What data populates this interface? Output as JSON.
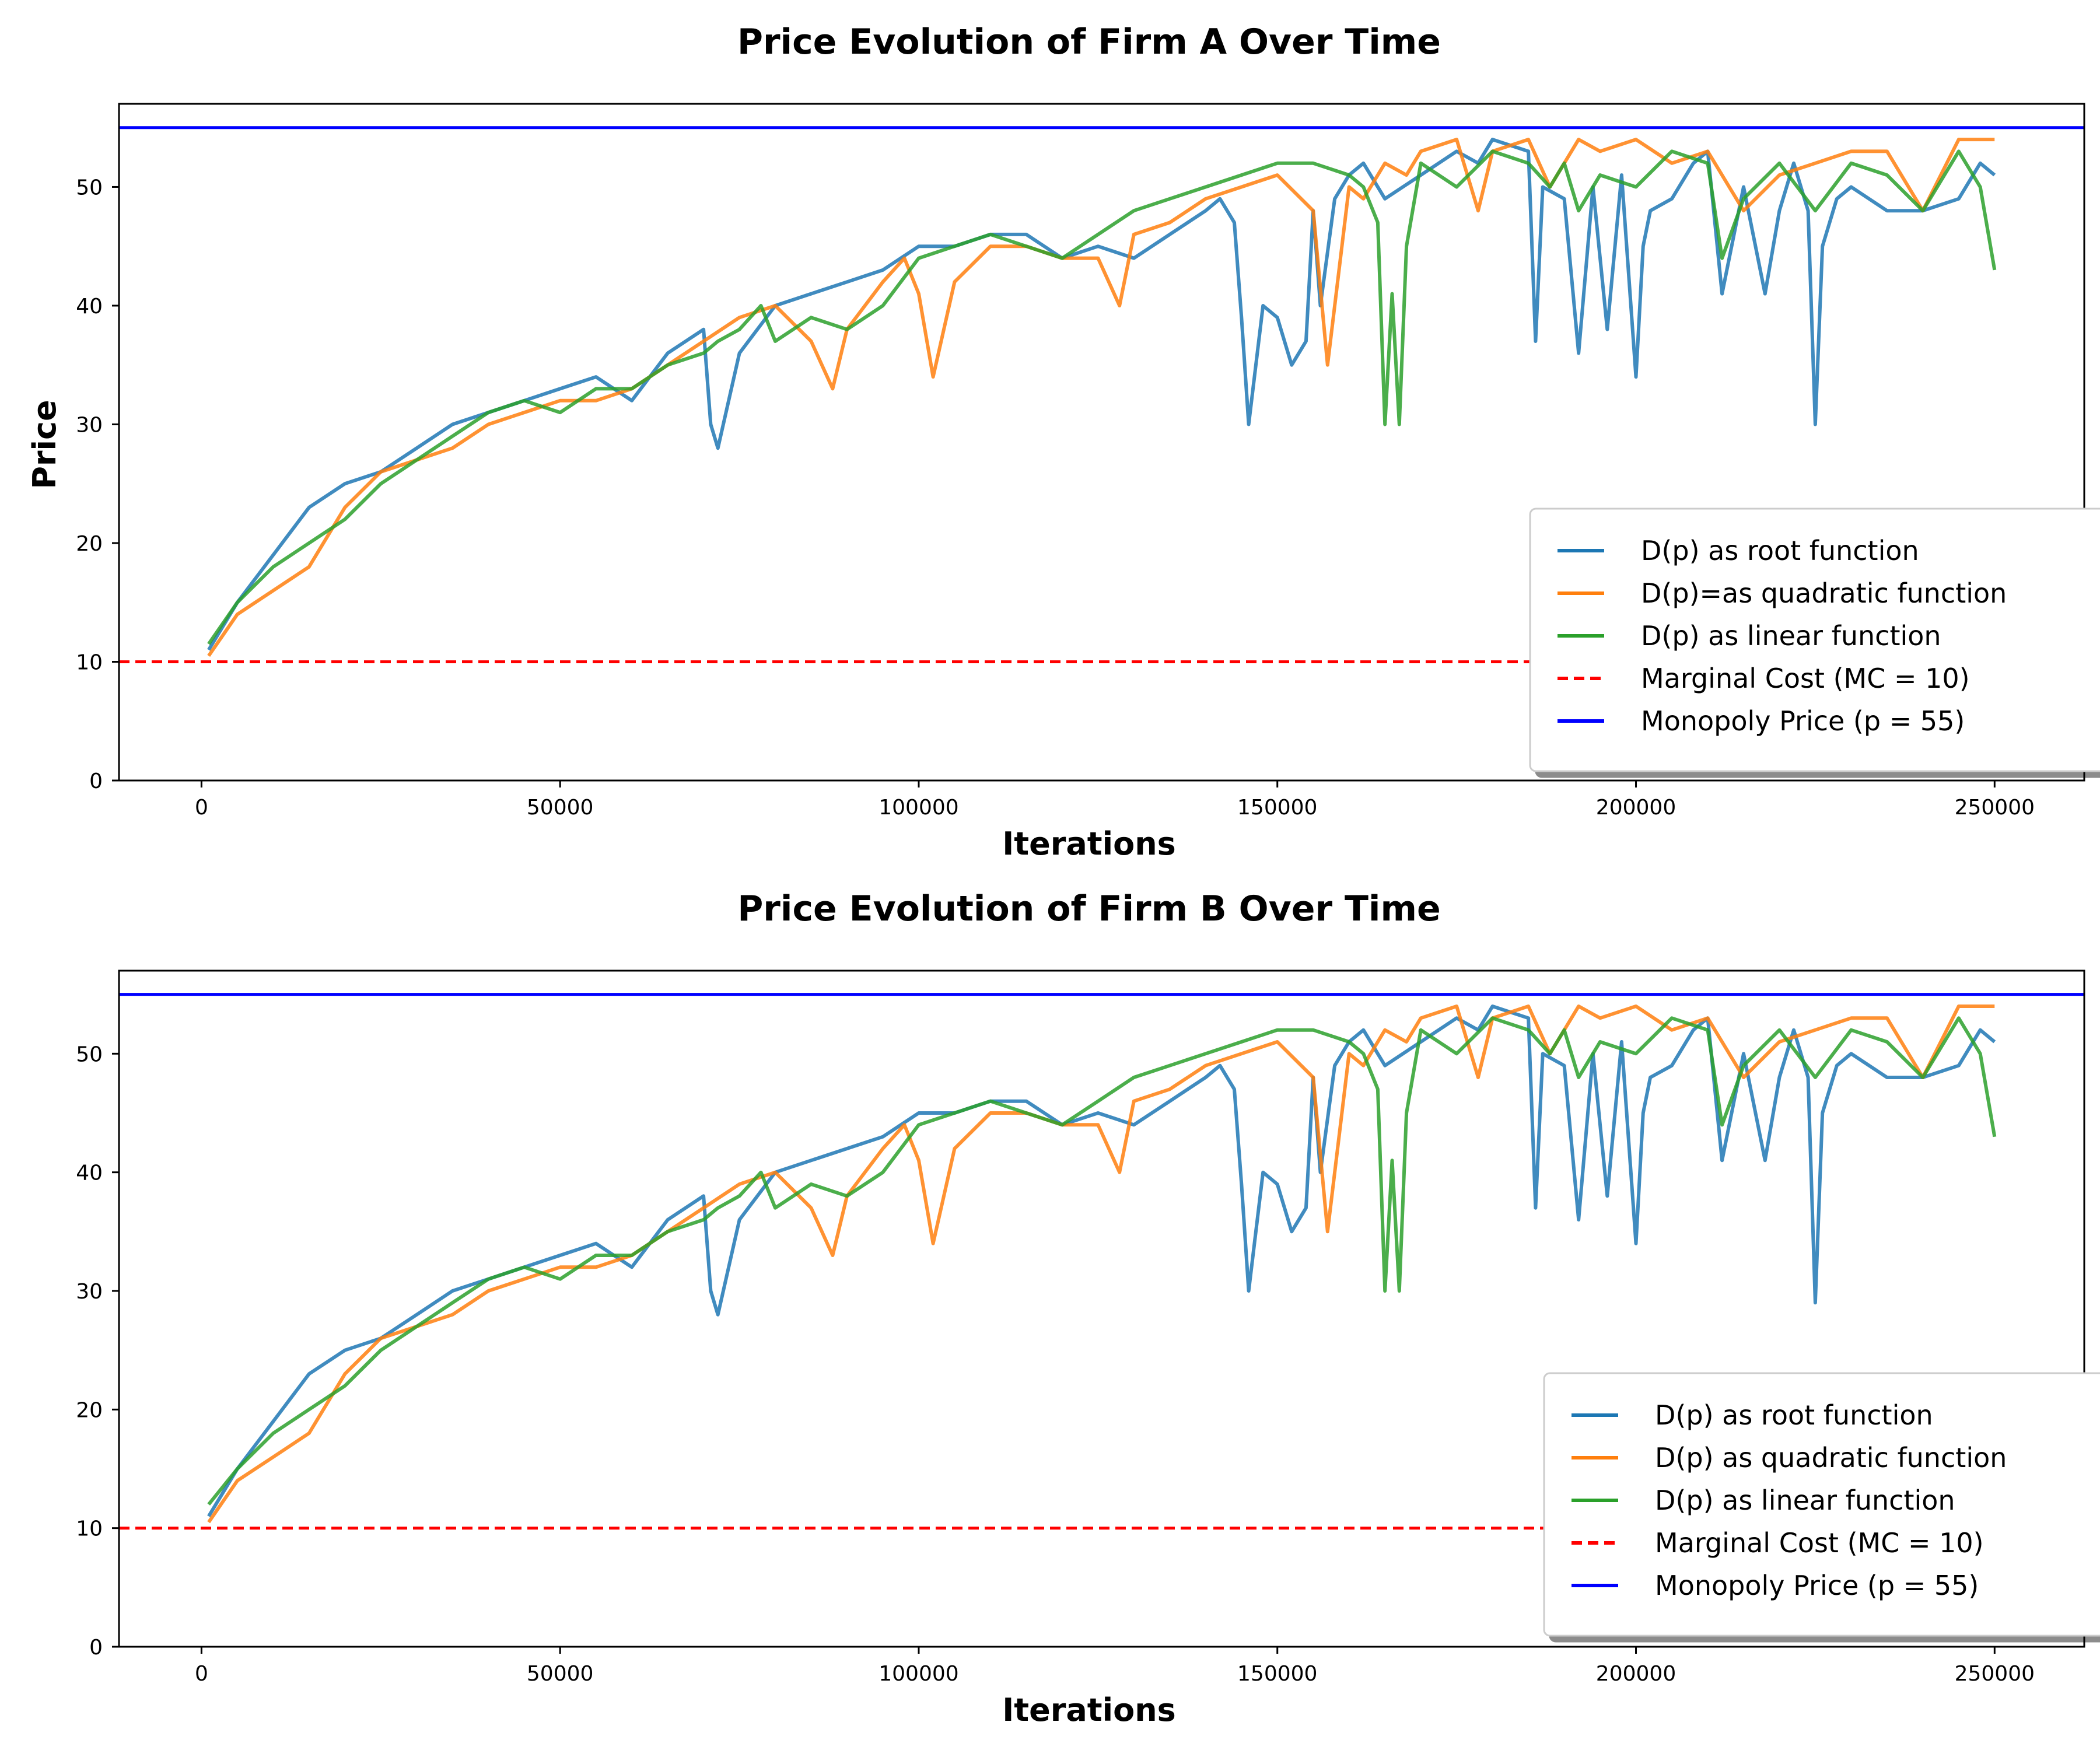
{
  "chart_data": [
    {
      "type": "line",
      "title": "Price Evolution of Firm A Over Time",
      "xlabel": "Iterations",
      "ylabel": "Price",
      "xlim": [
        -11500,
        262500
      ],
      "ylim": [
        0,
        57
      ],
      "xticks": [
        0,
        50000,
        100000,
        150000,
        200000,
        250000
      ],
      "yticks": [
        0,
        10,
        20,
        30,
        40,
        50
      ],
      "grid": false,
      "legend_position": "lower-right",
      "series": [
        {
          "name": "D(p) as root function",
          "color": "#1f77b4",
          "x": [
            1000,
            5000,
            10000,
            15000,
            20000,
            25000,
            30000,
            35000,
            40000,
            45000,
            50000,
            55000,
            60000,
            65000,
            70000,
            71000,
            72000,
            75000,
            80000,
            85000,
            90000,
            95000,
            100000,
            105000,
            110000,
            115000,
            120000,
            125000,
            130000,
            135000,
            140000,
            142000,
            144000,
            145000,
            146000,
            148000,
            150000,
            152000,
            154000,
            155000,
            156000,
            158000,
            160000,
            162000,
            165000,
            170000,
            175000,
            178000,
            180000,
            185000,
            186000,
            187000,
            190000,
            192000,
            194000,
            196000,
            198000,
            200000,
            201000,
            202000,
            205000,
            208000,
            210000,
            212000,
            215000,
            218000,
            220000,
            222000,
            224000,
            225000,
            226000,
            228000,
            230000,
            235000,
            240000,
            245000,
            248000,
            250000
          ],
          "values": [
            11,
            15,
            19,
            23,
            25,
            26,
            28,
            30,
            31,
            32,
            33,
            34,
            32,
            36,
            38,
            30,
            28,
            36,
            40,
            41,
            42,
            43,
            45,
            45,
            46,
            46,
            44,
            45,
            44,
            46,
            48,
            49,
            47,
            39,
            30,
            40,
            39,
            35,
            37,
            48,
            40,
            49,
            51,
            52,
            49,
            51,
            53,
            52,
            54,
            53,
            37,
            50,
            49,
            36,
            50,
            38,
            51,
            34,
            45,
            48,
            49,
            52,
            53,
            41,
            50,
            41,
            48,
            52,
            48,
            30,
            45,
            49,
            50,
            48,
            48,
            49,
            52,
            51
          ]
        },
        {
          "name": "D(p)=as quadratic function",
          "color": "#ff7f0e",
          "x": [
            1000,
            5000,
            10000,
            15000,
            20000,
            25000,
            30000,
            35000,
            40000,
            45000,
            50000,
            55000,
            60000,
            65000,
            70000,
            75000,
            80000,
            85000,
            88000,
            90000,
            95000,
            98000,
            100000,
            102000,
            105000,
            110000,
            115000,
            120000,
            125000,
            128000,
            130000,
            135000,
            140000,
            145000,
            150000,
            155000,
            157000,
            160000,
            162000,
            165000,
            168000,
            170000,
            175000,
            178000,
            180000,
            185000,
            188000,
            190000,
            192000,
            195000,
            200000,
            205000,
            210000,
            215000,
            220000,
            225000,
            230000,
            235000,
            240000,
            245000,
            250000
          ],
          "values": [
            10.5,
            14,
            16,
            18,
            23,
            26,
            27,
            28,
            30,
            31,
            32,
            32,
            33,
            35,
            37,
            39,
            40,
            37,
            33,
            38,
            42,
            44,
            41,
            34,
            42,
            45,
            45,
            44,
            44,
            40,
            46,
            47,
            49,
            50,
            51,
            48,
            35,
            50,
            49,
            52,
            51,
            53,
            54,
            48,
            53,
            54,
            50,
            52,
            54,
            53,
            54,
            52,
            53,
            48,
            51,
            52,
            53,
            53,
            48,
            54,
            54
          ]
        },
        {
          "name": "D(p) as linear function",
          "color": "#2ca02c",
          "x": [
            1000,
            5000,
            10000,
            15000,
            20000,
            25000,
            30000,
            35000,
            40000,
            45000,
            50000,
            55000,
            60000,
            65000,
            70000,
            72000,
            75000,
            78000,
            80000,
            85000,
            90000,
            95000,
            100000,
            105000,
            110000,
            115000,
            120000,
            125000,
            130000,
            135000,
            140000,
            145000,
            150000,
            155000,
            160000,
            162000,
            164000,
            165000,
            166000,
            167000,
            168000,
            170000,
            175000,
            180000,
            185000,
            188000,
            190000,
            192000,
            195000,
            200000,
            205000,
            210000,
            212000,
            215000,
            220000,
            225000,
            230000,
            235000,
            240000,
            245000,
            248000,
            250000
          ],
          "values": [
            11.5,
            15,
            18,
            20,
            22,
            25,
            27,
            29,
            31,
            32,
            31,
            33,
            33,
            35,
            36,
            37,
            38,
            40,
            37,
            39,
            38,
            40,
            44,
            45,
            46,
            45,
            44,
            46,
            48,
            49,
            50,
            51,
            52,
            52,
            51,
            50,
            47,
            30,
            41,
            30,
            45,
            52,
            50,
            53,
            52,
            50,
            52,
            48,
            51,
            50,
            53,
            52,
            44,
            49,
            52,
            48,
            52,
            51,
            48,
            53,
            50,
            43
          ]
        },
        {
          "name": "Marginal Cost (MC = 10)",
          "color": "#ff0000",
          "dashed": true,
          "y": 10
        },
        {
          "name": "Monopoly Price (p = 55)",
          "color": "#0000ff",
          "y": 55
        }
      ]
    },
    {
      "type": "line",
      "title": "Price Evolution of Firm B Over Time",
      "xlabel": "Iterations",
      "ylabel": "",
      "xlim": [
        -11500,
        262500
      ],
      "ylim": [
        0,
        57
      ],
      "xticks": [
        0,
        50000,
        100000,
        150000,
        200000,
        250000
      ],
      "yticks": [
        0,
        10,
        20,
        30,
        40,
        50
      ],
      "grid": false,
      "legend_position": "lower-right",
      "series": [
        {
          "name": "D(p) as root function",
          "color": "#1f77b4",
          "x": [
            1000,
            5000,
            10000,
            15000,
            20000,
            25000,
            30000,
            35000,
            40000,
            45000,
            50000,
            55000,
            60000,
            65000,
            70000,
            71000,
            72000,
            75000,
            80000,
            85000,
            90000,
            95000,
            100000,
            105000,
            110000,
            115000,
            120000,
            125000,
            130000,
            135000,
            140000,
            142000,
            144000,
            145000,
            146000,
            148000,
            150000,
            152000,
            154000,
            155000,
            156000,
            158000,
            160000,
            162000,
            165000,
            170000,
            175000,
            178000,
            180000,
            185000,
            186000,
            187000,
            190000,
            192000,
            194000,
            196000,
            198000,
            200000,
            201000,
            202000,
            205000,
            208000,
            210000,
            212000,
            215000,
            218000,
            220000,
            222000,
            224000,
            225000,
            226000,
            228000,
            230000,
            235000,
            240000,
            245000,
            248000,
            250000
          ],
          "values": [
            11,
            15,
            19,
            23,
            25,
            26,
            28,
            30,
            31,
            32,
            33,
            34,
            32,
            36,
            38,
            30,
            28,
            36,
            40,
            41,
            42,
            43,
            45,
            45,
            46,
            46,
            44,
            45,
            44,
            46,
            48,
            49,
            47,
            39,
            30,
            40,
            39,
            35,
            37,
            48,
            40,
            49,
            51,
            52,
            49,
            51,
            53,
            52,
            54,
            53,
            37,
            50,
            49,
            36,
            50,
            38,
            51,
            34,
            45,
            48,
            49,
            52,
            53,
            41,
            50,
            41,
            48,
            52,
            48,
            29,
            45,
            49,
            50,
            48,
            48,
            49,
            52,
            51
          ]
        },
        {
          "name": "D(p) as quadratic function",
          "color": "#ff7f0e",
          "x": [
            1000,
            5000,
            10000,
            15000,
            20000,
            25000,
            30000,
            35000,
            40000,
            45000,
            50000,
            55000,
            60000,
            65000,
            70000,
            75000,
            80000,
            85000,
            88000,
            90000,
            95000,
            98000,
            100000,
            102000,
            105000,
            110000,
            115000,
            120000,
            125000,
            128000,
            130000,
            135000,
            140000,
            145000,
            150000,
            155000,
            157000,
            160000,
            162000,
            165000,
            168000,
            170000,
            175000,
            178000,
            180000,
            185000,
            188000,
            190000,
            192000,
            195000,
            200000,
            205000,
            210000,
            215000,
            220000,
            225000,
            230000,
            235000,
            240000,
            245000,
            250000
          ],
          "values": [
            10.5,
            14,
            16,
            18,
            23,
            26,
            27,
            28,
            30,
            31,
            32,
            32,
            33,
            35,
            37,
            39,
            40,
            37,
            33,
            38,
            42,
            44,
            41,
            34,
            42,
            45,
            45,
            44,
            44,
            40,
            46,
            47,
            49,
            50,
            51,
            48,
            35,
            50,
            49,
            52,
            51,
            53,
            54,
            48,
            53,
            54,
            50,
            52,
            54,
            53,
            54,
            52,
            53,
            48,
            51,
            52,
            53,
            53,
            48,
            54,
            54
          ]
        },
        {
          "name": "D(p) as linear function",
          "color": "#2ca02c",
          "x": [
            1000,
            5000,
            10000,
            15000,
            20000,
            25000,
            30000,
            35000,
            40000,
            45000,
            50000,
            55000,
            60000,
            65000,
            70000,
            72000,
            75000,
            78000,
            80000,
            85000,
            90000,
            95000,
            100000,
            105000,
            110000,
            115000,
            120000,
            125000,
            130000,
            135000,
            140000,
            145000,
            150000,
            155000,
            160000,
            162000,
            164000,
            165000,
            166000,
            167000,
            168000,
            170000,
            175000,
            180000,
            185000,
            188000,
            190000,
            192000,
            195000,
            200000,
            205000,
            210000,
            212000,
            215000,
            220000,
            225000,
            230000,
            235000,
            240000,
            245000,
            248000,
            250000
          ],
          "values": [
            12,
            15,
            18,
            20,
            22,
            25,
            27,
            29,
            31,
            32,
            31,
            33,
            33,
            35,
            36,
            37,
            38,
            40,
            37,
            39,
            38,
            40,
            44,
            45,
            46,
            45,
            44,
            46,
            48,
            49,
            50,
            51,
            52,
            52,
            51,
            50,
            47,
            30,
            41,
            30,
            45,
            52,
            50,
            53,
            52,
            50,
            52,
            48,
            51,
            50,
            53,
            52,
            44,
            49,
            52,
            48,
            52,
            51,
            48,
            53,
            50,
            43
          ]
        },
        {
          "name": "Marginal Cost (MC = 10)",
          "color": "#ff0000",
          "dashed": true,
          "y": 10
        },
        {
          "name": "Monopoly Price (p = 55)",
          "color": "#0000ff",
          "y": 55
        }
      ]
    }
  ]
}
